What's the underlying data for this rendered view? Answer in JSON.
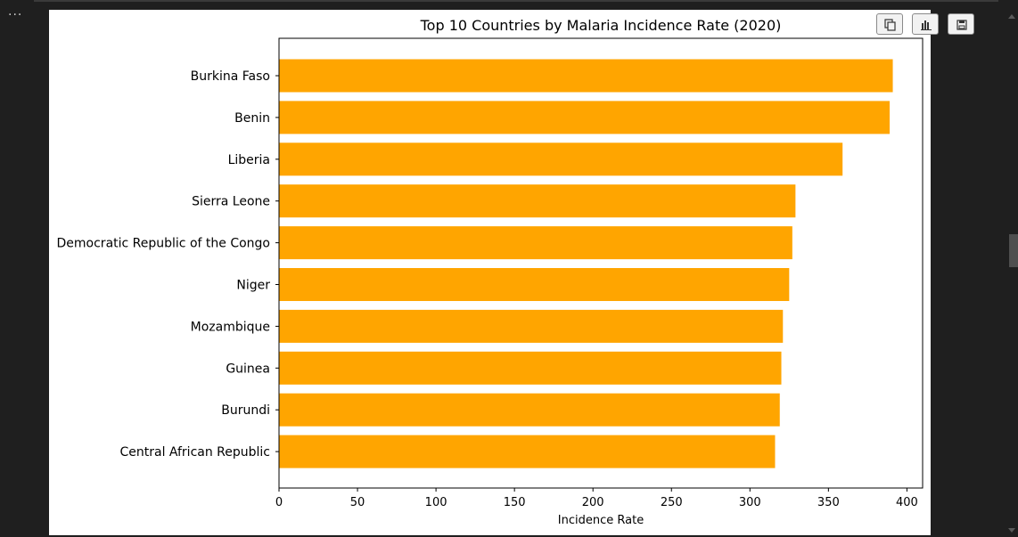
{
  "cell": {
    "menu_label": "···"
  },
  "toolbar": {
    "copy_icon": "copy-icon",
    "chart_icon": "chart-icon",
    "save_icon": "save-icon"
  },
  "chart_data": {
    "type": "bar",
    "orientation": "horizontal",
    "title": "Top 10 Countries by Malaria Incidence Rate (2020)",
    "xlabel": "Incidence Rate",
    "ylabel": "",
    "xlim": [
      0,
      410
    ],
    "xticks": [
      0,
      50,
      100,
      150,
      200,
      250,
      300,
      350,
      400
    ],
    "grid": false,
    "bar_color": "#ffa500",
    "categories": [
      "Burkina Faso",
      "Benin",
      "Liberia",
      "Sierra Leone",
      "Democratic Republic of the Congo",
      "Niger",
      "Mozambique",
      "Guinea",
      "Burundi",
      "Central African Republic"
    ],
    "values": [
      391,
      389,
      359,
      329,
      327,
      325,
      321,
      320,
      319,
      316
    ]
  }
}
